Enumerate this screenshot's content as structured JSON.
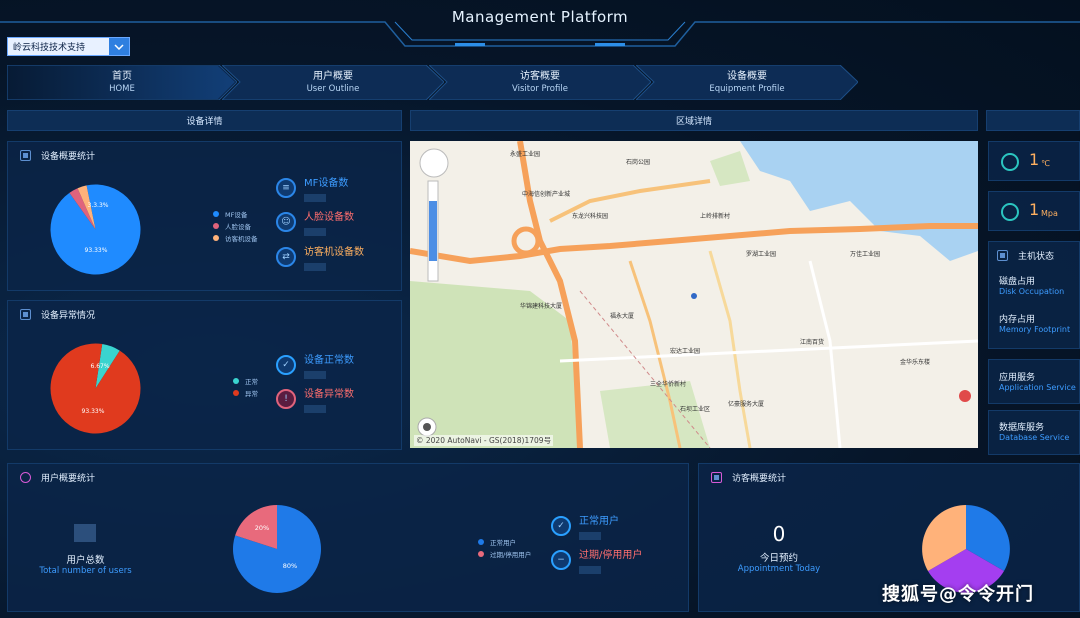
{
  "header": {
    "title": "Management Platform"
  },
  "company_select": {
    "value": "岭云科技技术支持"
  },
  "nav": [
    {
      "zh": "首页",
      "en": "HOME",
      "active": true
    },
    {
      "zh": "用户概要",
      "en": "User Outline",
      "active": false
    },
    {
      "zh": "访客概要",
      "en": "Visitor Profile",
      "active": false
    },
    {
      "zh": "设备概要",
      "en": "Equipment Profile",
      "active": false
    }
  ],
  "sections": {
    "device_detail": "设备详情",
    "area_detail": "区域详情"
  },
  "device_overview": {
    "title": "设备概要统计",
    "legend": [
      "MF设备",
      "人脸设备",
      "访客机设备"
    ],
    "pie_labels": {
      "main": "93.33%",
      "small": "3.3.3%"
    },
    "stats": [
      "MF设备数",
      "人脸设备数",
      "访客机设备数"
    ],
    "chart_data": {
      "type": "pie",
      "categories": [
        "MF设备",
        "人脸设备",
        "访客机设备"
      ],
      "values": [
        93.33,
        3.33,
        3.33
      ],
      "colors": [
        "#1f8bff",
        "#e0637c",
        "#ffb27a"
      ]
    }
  },
  "device_abnormal": {
    "title": "设备异常情况",
    "legend": [
      "正常",
      "异常"
    ],
    "pie_labels": {
      "normal": "6.67%",
      "abnormal": "93.33%"
    },
    "stats": [
      "设备正常数",
      "设备异常数"
    ],
    "chart_data": {
      "type": "pie",
      "categories": [
        "正常",
        "异常"
      ],
      "values": [
        6.67,
        93.33
      ],
      "colors": [
        "#3ad4cf",
        "#e03a1e"
      ]
    }
  },
  "user_overview": {
    "title": "用户概要统计",
    "total_zh": "用户总数",
    "total_en": "Total number of users",
    "legend": [
      "正常用户",
      "过期/停用用户"
    ],
    "pie_labels": {
      "normal": "80%",
      "expired": "20%"
    },
    "stats": [
      "正常用户",
      "过期/停用用户"
    ],
    "chart_data": {
      "type": "pie",
      "categories": [
        "正常用户",
        "过期/停用用户"
      ],
      "values": [
        80,
        20
      ],
      "colors": [
        "#1f7ae8",
        "#e86a7c"
      ]
    }
  },
  "visitor_overview": {
    "title": "访客概要统计",
    "count": "0",
    "today_zh": "今日预约",
    "today_en": "Appointment Today"
  },
  "map": {
    "copyright": "© 2020 AutoNavi - GS(2018)1709号",
    "labels": [
      "永盛工业园",
      "石岗公园",
      "中海信创新产业城",
      "东龙兴科技园",
      "上岭排新村",
      "罗湖工业园",
      "华锦建科技大厦",
      "福永大厦",
      "万佳工业园",
      "宏达工业园",
      "三全华侨新村",
      "石坝工业区",
      "亿豪服务大厦",
      "江南百货",
      "金华乐东楼"
    ]
  },
  "env": [
    {
      "value": "1",
      "unit": "℃"
    },
    {
      "value": "1",
      "unit": "Mpa"
    }
  ],
  "host": {
    "title": "主机状态",
    "disk_zh": "磁盘占用",
    "disk_en": "Disk Occupation",
    "mem_zh": "内存占用",
    "mem_en": "Memory Footprint"
  },
  "services": [
    {
      "zh": "应用服务",
      "en": "Application Service"
    },
    {
      "zh": "数据库服务",
      "en": "Database Service"
    }
  ],
  "watermark": "搜狐号@令令开门"
}
